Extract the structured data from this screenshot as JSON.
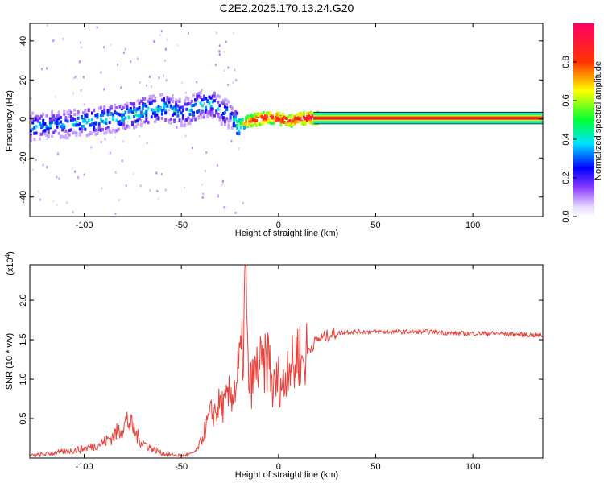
{
  "title": "C2E2.2025.170.13.24.G20",
  "chart_data": [
    {
      "type": "heatmap",
      "xlabel": "Height of straight line (km)",
      "ylabel": "Frequency (Hz)",
      "xlim": [
        -128,
        136
      ],
      "ylim": [
        -50,
        49
      ],
      "xticks": [
        -100,
        -50,
        0,
        50,
        100
      ],
      "yticks": [
        -40,
        -20,
        0,
        20,
        40
      ],
      "colorbar": {
        "label": "Normalized spectral amplitude",
        "range": [
          0,
          1
        ],
        "ticks": [
          0.0,
          0.2,
          0.4,
          0.6,
          0.8
        ]
      },
      "ridge": {
        "x": [
          -128,
          -110,
          -95,
          -80,
          -70,
          -60,
          -50,
          -45,
          -40,
          -35,
          -30,
          -25,
          -22,
          -18,
          -15,
          -10,
          -5,
          0,
          5,
          10,
          15,
          20,
          40,
          60,
          80,
          100,
          120,
          136
        ],
        "y": [
          -4,
          -3,
          -1,
          1,
          4,
          6,
          3,
          5,
          7,
          8,
          4,
          2,
          -3,
          -2,
          -1,
          0,
          1,
          0,
          -1,
          0,
          0.5,
          0.5,
          0.5,
          0.5,
          0.5,
          0.5,
          0.5,
          0.5
        ],
        "amplitude": [
          0.35,
          0.35,
          0.4,
          0.4,
          0.4,
          0.4,
          0.35,
          0.38,
          0.4,
          0.38,
          0.35,
          0.3,
          0.45,
          0.7,
          0.85,
          0.9,
          0.85,
          0.9,
          0.85,
          0.9,
          0.95,
          0.95,
          0.95,
          0.95,
          0.95,
          0.95,
          0.95,
          0.95
        ]
      }
    },
    {
      "type": "line",
      "xlabel": "Height of straight line (km)",
      "ylabel": "SNR (10 * v/v)",
      "y_multiplier": "(x10",
      "y_multiplier_exp": "4",
      "y_multiplier_close": ")",
      "xlim": [
        -128,
        136
      ],
      "ylim": [
        0,
        2.45
      ],
      "xticks": [
        -100,
        -50,
        0,
        50,
        100
      ],
      "yticks": [
        0.5,
        1.0,
        1.5,
        2.0
      ],
      "series": [
        {
          "color": "#e8403a",
          "x": [
            -128,
            -120,
            -110,
            -100,
            -95,
            -90,
            -85,
            -80,
            -78,
            -75,
            -72,
            -70,
            -65,
            -60,
            -55,
            -50,
            -45,
            -42,
            -40,
            -38,
            -35,
            -32,
            -30,
            -28,
            -25,
            -22,
            -20,
            -18,
            -17,
            -16,
            -15,
            -13,
            -10,
            -8,
            -5,
            -3,
            0,
            3,
            5,
            8,
            10,
            12,
            15,
            18,
            20,
            25,
            30,
            35,
            40,
            45,
            50,
            60,
            70,
            80,
            90,
            100,
            110,
            120,
            130,
            136
          ],
          "y": [
            0.03,
            0.05,
            0.08,
            0.12,
            0.15,
            0.2,
            0.28,
            0.4,
            0.48,
            0.38,
            0.25,
            0.2,
            0.12,
            0.06,
            0.04,
            0.03,
            0.05,
            0.1,
            0.2,
            0.35,
            0.55,
            0.6,
            0.7,
            0.65,
            0.8,
            0.9,
            1.2,
            1.4,
            2.4,
            1.3,
            0.9,
            1.0,
            1.2,
            1.1,
            1.3,
            0.85,
            1.0,
            0.9,
            1.3,
            1.1,
            1.4,
            1.2,
            1.35,
            1.45,
            1.5,
            1.55,
            1.58,
            1.6,
            1.6,
            1.6,
            1.6,
            1.6,
            1.6,
            1.6,
            1.58,
            1.58,
            1.58,
            1.57,
            1.56,
            1.55
          ]
        }
      ]
    }
  ]
}
